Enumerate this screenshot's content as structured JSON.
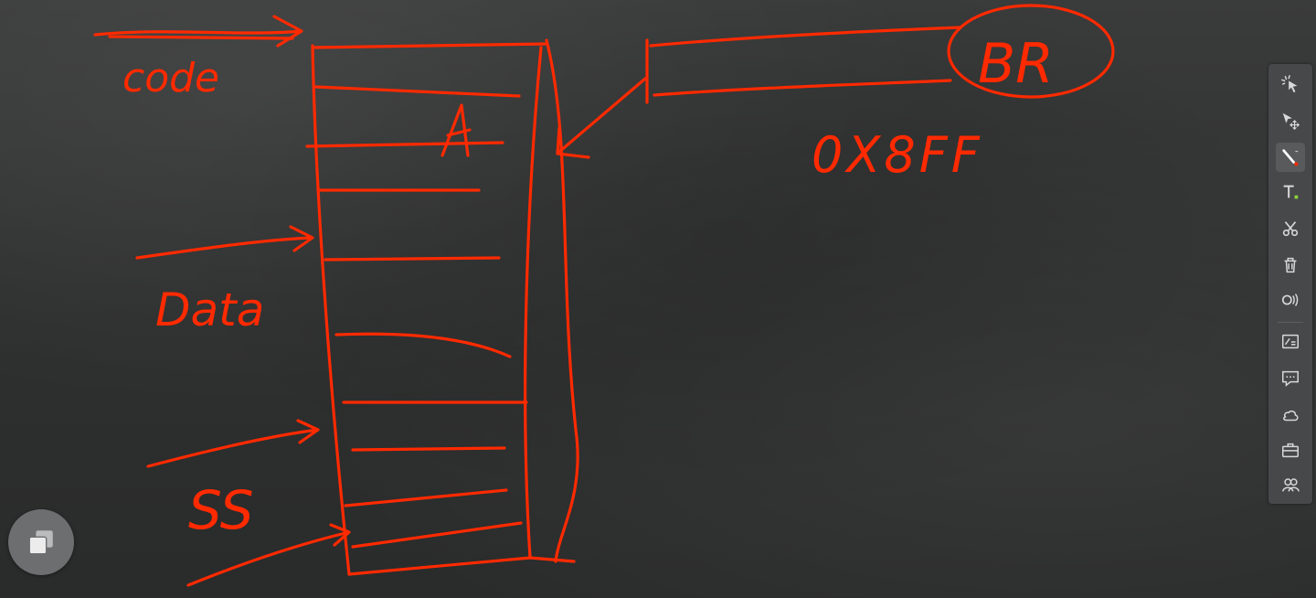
{
  "whiteboard": {
    "ink_color": "#ff2a00",
    "background_color": "#2f3030",
    "labels": {
      "code": "code",
      "data": "Data",
      "stack": "SS",
      "register": "BR",
      "address": "0X8FF",
      "entry": "A"
    }
  },
  "toolbar": {
    "background": "#484a4c",
    "icon_color": "#d8d8d8",
    "active_tool": "pen",
    "tools": [
      {
        "icon": "laser-pointer-icon",
        "name": "laser-pointer"
      },
      {
        "icon": "select-move-icon",
        "name": "select"
      },
      {
        "icon": "pen-icon",
        "name": "pen"
      },
      {
        "icon": "text-icon",
        "name": "text"
      },
      {
        "icon": "scissors-icon",
        "name": "cut"
      },
      {
        "icon": "trash-icon",
        "name": "delete"
      },
      {
        "icon": "broadcast-icon",
        "name": "broadcast"
      },
      {
        "icon": "whiteboard-icon",
        "name": "whiteboard"
      },
      {
        "icon": "comment-icon",
        "name": "comment"
      },
      {
        "icon": "cloud-icon",
        "name": "cloud"
      },
      {
        "icon": "toolbox-icon",
        "name": "toolbox"
      },
      {
        "icon": "users-icon",
        "name": "users"
      }
    ]
  },
  "floating_button": {
    "icon": "window-stack-icon"
  }
}
